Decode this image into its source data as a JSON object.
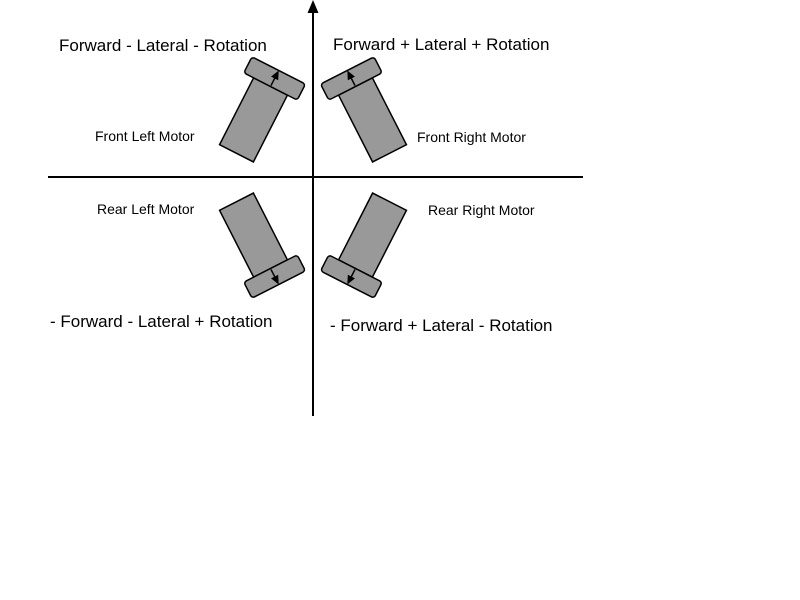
{
  "colors": {
    "motor_fill": "#999999",
    "stroke": "#000000",
    "background": "#ffffff"
  },
  "quadrants": {
    "front_left": {
      "formula": "Forward - Lateral - Rotation",
      "motor_label": "Front Left Motor",
      "arrow_direction": "up"
    },
    "front_right": {
      "formula": "Forward + Lateral + Rotation",
      "motor_label": "Front Right Motor",
      "arrow_direction": "up"
    },
    "rear_left": {
      "formula": "- Forward - Lateral + Rotation",
      "motor_label": "Rear Left Motor",
      "arrow_direction": "down"
    },
    "rear_right": {
      "formula": "- Forward + Lateral - Rotation",
      "motor_label": "Rear Right Motor",
      "arrow_direction": "down"
    }
  },
  "icons": {
    "motor": "motor-icon",
    "direction_arrow": "arrow-icon",
    "axis": "axis-arrow-icon"
  }
}
